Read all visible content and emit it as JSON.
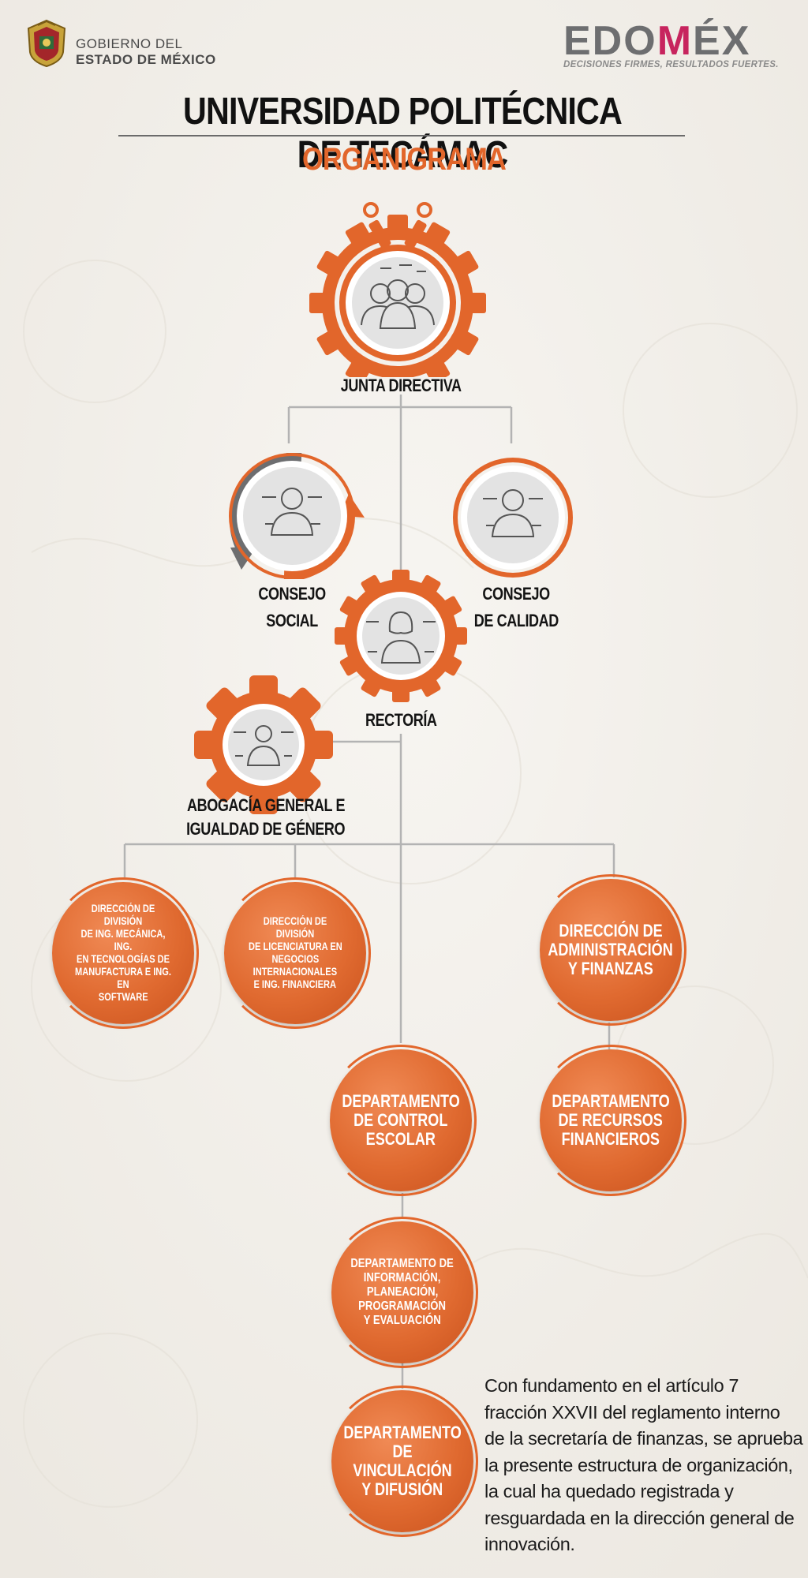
{
  "header": {
    "gov_line1": "GOBIERNO DEL",
    "gov_line2": "ESTADO DE MÉXICO",
    "brand_edo": "EDO",
    "brand_m": "M",
    "brand_ex": "ÉX",
    "brand_tagline": "DECISIONES FIRMES, RESULTADOS FUERTES.",
    "title": "UNIVERSIDAD POLITÉCNICA DE TECÁMAC",
    "subtitle": "ORGANIGRAMA"
  },
  "colors": {
    "accent": "#e2662b",
    "text": "#141414",
    "line": "#b3b3b3"
  },
  "nodes": {
    "junta": {
      "label": "JUNTA DIRECTIVA",
      "icon": "group-people-icon"
    },
    "consejo_social": {
      "line1": "CONSEJO",
      "line2": "SOCIAL",
      "icon": "person-icon"
    },
    "consejo_calidad": {
      "line1": "CONSEJO",
      "line2": "DE CALIDAD",
      "icon": "person-icon"
    },
    "rectoria": {
      "label": "RECTORÍA",
      "icon": "woman-icon"
    },
    "abogacia": {
      "line1": "ABOGACÍA GENERAL E",
      "line2": "IGUALDAD DE GÉNERO",
      "icon": "person-icon"
    },
    "div_mecanica": {
      "lines": [
        "DIRECCIÓN DE DIVISIÓN",
        "DE ING. MECÁNICA, ING.",
        "EN TECNOLOGÍAS DE",
        "MANUFACTURA E ING. EN",
        "SOFTWARE"
      ]
    },
    "div_licenciatura": {
      "lines": [
        "DIRECCIÓN DE DIVISIÓN",
        "DE LICENCIATURA EN",
        "NEGOCIOS",
        "INTERNACIONALES",
        "E ING. FINANCIERA"
      ]
    },
    "dir_admin": {
      "lines": [
        "DIRECCIÓN DE",
        "ADMINISTRACIÓN",
        "Y FINANZAS"
      ]
    },
    "depto_control": {
      "lines": [
        "DEPARTAMENTO",
        "DE CONTROL",
        "ESCOLAR"
      ]
    },
    "depto_recursos": {
      "lines": [
        "DEPARTAMENTO",
        "DE RECURSOS",
        "FINANCIEROS"
      ]
    },
    "depto_informacion": {
      "lines": [
        "DEPARTAMENTO DE",
        "INFORMACIÓN,",
        "PLANEACIÓN,",
        "PROGRAMACIÓN",
        "Y EVALUACIÓN"
      ]
    },
    "depto_vinculacion": {
      "lines": [
        "DEPARTAMENTO",
        "DE VINCULACIÓN",
        "Y DIFUSIÓN"
      ]
    }
  },
  "note": "Con fundamento en el artículo 7 fracción XXVII del reglamento interno de la secretaría de finanzas, se aprueba la presente estructura de organización, la cual ha quedado registrada y resguardada en la dirección general de innovación."
}
